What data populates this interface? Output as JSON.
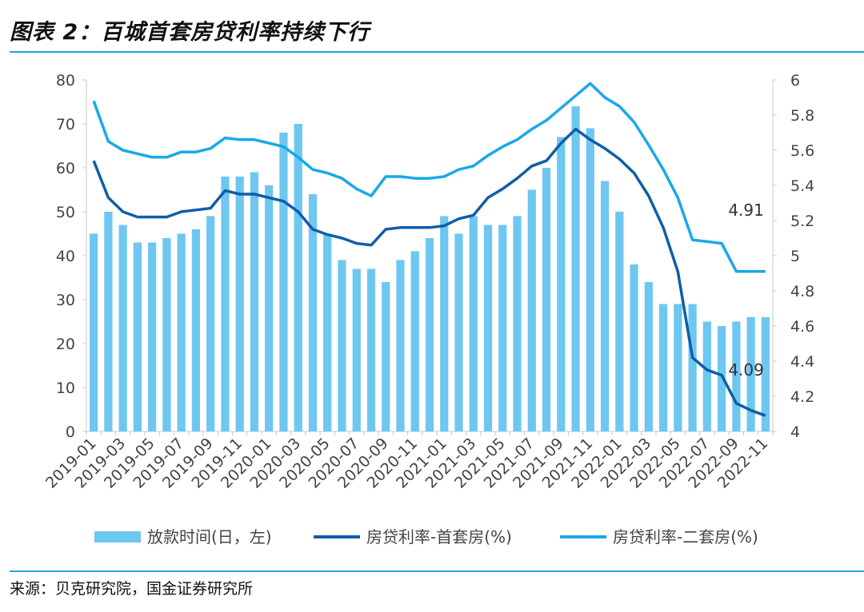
{
  "figure": {
    "title": "图表 2：百城首套房贷利率持续下行",
    "source": "来源：贝克研究院，国金证券研究所"
  },
  "colors": {
    "bars": "#6ec7f0",
    "first_home": "#0f5ea8",
    "second_home": "#19a8ea",
    "rule": "#2aa3e0"
  },
  "chart_data": {
    "type": "bar+line",
    "title": "百城首套房贷利率持续下行",
    "x": [
      "2019-01",
      "2019-02",
      "2019-03",
      "2019-04",
      "2019-05",
      "2019-06",
      "2019-07",
      "2019-08",
      "2019-09",
      "2019-10",
      "2019-11",
      "2019-12",
      "2020-01",
      "2020-02",
      "2020-03",
      "2020-04",
      "2020-05",
      "2020-06",
      "2020-07",
      "2020-08",
      "2020-09",
      "2020-10",
      "2020-11",
      "2020-12",
      "2021-01",
      "2021-02",
      "2021-03",
      "2021-04",
      "2021-05",
      "2021-06",
      "2021-07",
      "2021-08",
      "2021-09",
      "2021-10",
      "2021-11",
      "2021-12",
      "2022-01",
      "2022-02",
      "2022-03",
      "2022-04",
      "2022-05",
      "2022-06",
      "2022-07",
      "2022-08",
      "2022-09",
      "2022-10",
      "2022-11"
    ],
    "x_tick_labels": [
      "2019-01",
      "2019-03",
      "2019-05",
      "2019-07",
      "2019-09",
      "2019-11",
      "2020-01",
      "2020-03",
      "2020-05",
      "2020-07",
      "2020-09",
      "2020-11",
      "2021-01",
      "2021-03",
      "2021-05",
      "2021-07",
      "2021-09",
      "2021-11",
      "2022-01",
      "2022-03",
      "2022-05",
      "2022-07",
      "2022-09",
      "2022-11"
    ],
    "left_axis": {
      "ylim": [
        0,
        80
      ],
      "ticks": [
        "0",
        "10",
        "20",
        "30",
        "40",
        "50",
        "60",
        "70",
        "80"
      ]
    },
    "right_axis": {
      "ylim": [
        4,
        6
      ],
      "ticks": [
        "4",
        "4.2",
        "4.4",
        "4.6",
        "4.8",
        "5",
        "5.2",
        "5.4",
        "5.6",
        "5.8",
        "6"
      ]
    },
    "series": [
      {
        "name": "放款时间(日，左)",
        "kind": "bar",
        "axis": "left",
        "values": [
          45,
          50,
          47,
          43,
          43,
          44,
          45,
          46,
          49,
          58,
          58,
          59,
          56,
          68,
          70,
          54,
          45,
          39,
          37,
          37,
          34,
          39,
          41,
          44,
          49,
          45,
          49,
          47,
          47,
          49,
          55,
          60,
          67,
          74,
          69,
          57,
          50,
          38,
          34,
          29,
          29,
          29,
          25,
          24,
          25,
          26,
          26
        ]
      },
      {
        "name": "房贷利率-首套房(%)",
        "kind": "line",
        "axis": "right",
        "values": [
          5.54,
          5.33,
          5.25,
          5.22,
          5.22,
          5.22,
          5.25,
          5.26,
          5.27,
          5.37,
          5.35,
          5.35,
          5.33,
          5.31,
          5.25,
          5.15,
          5.12,
          5.1,
          5.07,
          5.06,
          5.15,
          5.16,
          5.16,
          5.16,
          5.17,
          5.21,
          5.23,
          5.33,
          5.38,
          5.44,
          5.51,
          5.54,
          5.64,
          5.72,
          5.66,
          5.61,
          5.55,
          5.47,
          5.34,
          5.16,
          4.91,
          4.42,
          4.35,
          4.32,
          4.16,
          4.12,
          4.09
        ]
      },
      {
        "name": "房贷利率-二套房(%)",
        "kind": "line",
        "axis": "right",
        "values": [
          5.88,
          5.65,
          5.6,
          5.58,
          5.56,
          5.56,
          5.59,
          5.59,
          5.61,
          5.67,
          5.66,
          5.66,
          5.64,
          5.62,
          5.56,
          5.49,
          5.47,
          5.44,
          5.38,
          5.34,
          5.45,
          5.45,
          5.44,
          5.44,
          5.45,
          5.49,
          5.51,
          5.57,
          5.62,
          5.66,
          5.72,
          5.77,
          5.84,
          5.91,
          5.98,
          5.9,
          5.85,
          5.76,
          5.63,
          5.49,
          5.33,
          5.09,
          5.08,
          5.07,
          4.91,
          4.91,
          4.91
        ]
      }
    ],
    "annotations": [
      {
        "text": "4.91",
        "series": "房贷利率-二套房(%)",
        "index": 46
      },
      {
        "text": "4.09",
        "series": "房贷利率-首套房(%)",
        "index": 46
      }
    ],
    "legend": {
      "position": "bottom",
      "labels": [
        "放款时间(日，左)",
        "房贷利率-首套房(%)",
        "房贷利率-二套房(%)"
      ]
    },
    "grid": false
  }
}
